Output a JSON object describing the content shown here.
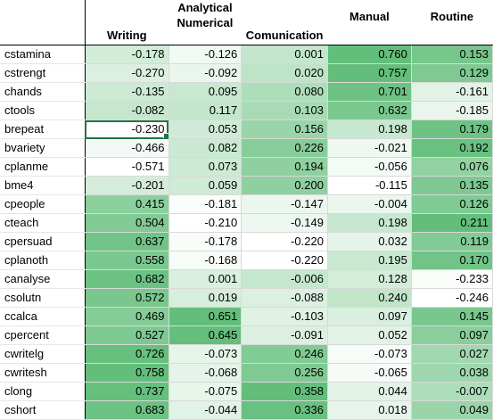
{
  "headers": [
    "",
    "Writing",
    "Analytical Numerical",
    "Comunication",
    "Manual",
    "Routine"
  ],
  "header_lines": [
    [
      ""
    ],
    [
      "Writing"
    ],
    [
      "Analytical",
      "Numerical"
    ],
    [
      "Comunication"
    ],
    [
      "Manual"
    ],
    [
      "Routine"
    ]
  ],
  "rows": [
    {
      "label": "cstamina",
      "values": [
        "-0.178",
        "-0.126",
        "0.001",
        "0.760",
        "0.153"
      ]
    },
    {
      "label": "cstrengt",
      "values": [
        "-0.270",
        "-0.092",
        "0.020",
        "0.757",
        "0.129"
      ]
    },
    {
      "label": "chands",
      "values": [
        "-0.135",
        "0.095",
        "0.080",
        "0.701",
        "-0.161"
      ]
    },
    {
      "label": "ctools",
      "values": [
        "-0.082",
        "0.117",
        "0.103",
        "0.632",
        "-0.185"
      ]
    },
    {
      "label": "brepeat",
      "values": [
        "-0.230",
        "0.053",
        "0.156",
        "0.198",
        "0.179"
      ]
    },
    {
      "label": "bvariety",
      "values": [
        "-0.466",
        "0.082",
        "0.226",
        "-0.021",
        "0.192"
      ]
    },
    {
      "label": "cplanme",
      "values": [
        "-0.571",
        "0.073",
        "0.194",
        "-0.056",
        "0.076"
      ]
    },
    {
      "label": "bme4",
      "values": [
        "-0.201",
        "0.059",
        "0.200",
        "-0.115",
        "0.135"
      ]
    },
    {
      "label": "cpeople",
      "values": [
        "0.415",
        "-0.181",
        "-0.147",
        "-0.004",
        "0.126"
      ]
    },
    {
      "label": "cteach",
      "values": [
        "0.504",
        "-0.210",
        "-0.149",
        "0.198",
        "0.211"
      ]
    },
    {
      "label": "cpersuad",
      "values": [
        "0.637",
        "-0.178",
        "-0.220",
        "0.032",
        "0.119"
      ]
    },
    {
      "label": "cplanoth",
      "values": [
        "0.558",
        "-0.168",
        "-0.220",
        "0.195",
        "0.170"
      ]
    },
    {
      "label": "canalyse",
      "values": [
        "0.682",
        "0.001",
        "-0.006",
        "0.128",
        "-0.233"
      ]
    },
    {
      "label": "csolutn",
      "values": [
        "0.572",
        "0.019",
        "-0.088",
        "0.240",
        "-0.246"
      ]
    },
    {
      "label": "ccalca",
      "values": [
        "0.469",
        "0.651",
        "-0.103",
        "0.097",
        "0.145"
      ]
    },
    {
      "label": "cpercent",
      "values": [
        "0.527",
        "0.645",
        "-0.091",
        "0.052",
        "0.097"
      ]
    },
    {
      "label": "cwritelg",
      "values": [
        "0.726",
        "-0.073",
        "0.246",
        "-0.073",
        "0.027"
      ]
    },
    {
      "label": "cwritesh",
      "values": [
        "0.758",
        "-0.068",
        "0.256",
        "-0.065",
        "0.038"
      ]
    },
    {
      "label": "clong",
      "values": [
        "0.737",
        "-0.075",
        "0.358",
        "0.044",
        "-0.007"
      ]
    },
    {
      "label": "cshort",
      "values": [
        "0.683",
        "-0.044",
        "0.336",
        "0.018",
        "0.049"
      ]
    }
  ],
  "selected_cell": {
    "row": 4,
    "col": 0
  },
  "colors": {
    "scale_low": "#ffffff",
    "scale_high": "#63be7b",
    "selection": "#217346",
    "gridline": "#d9d9d9"
  }
}
